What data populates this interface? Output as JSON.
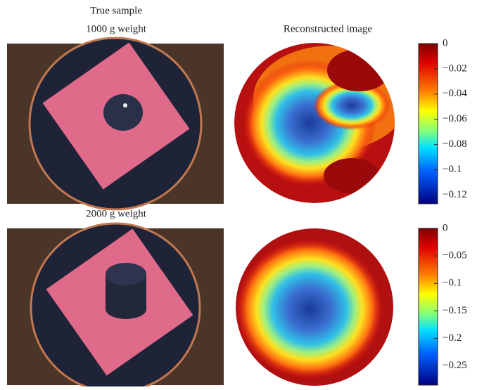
{
  "column_titles": {
    "left": "True sample",
    "right": "Reconstructed image"
  },
  "rows": [
    {
      "label": "1000 g weight",
      "colorbar": {
        "ylim": [
          -0.127,
          0
        ],
        "yticks": [
          0,
          {
            "value": -0.02,
            "label": "−0.02"
          },
          {
            "value": -0.04,
            "label": "−0.04"
          },
          {
            "value": -0.06,
            "label": "−0.06"
          },
          {
            "value": -0.08,
            "label": "−0.08"
          },
          {
            "value": -0.1,
            "label": "−0.1"
          },
          {
            "value": -0.12,
            "label": "−0.12"
          }
        ]
      }
    },
    {
      "label": "2000 g weight",
      "colorbar": {
        "ylim": [
          -0.285,
          0
        ],
        "yticks": [
          0,
          {
            "value": -0.05,
            "label": "−0.05"
          },
          {
            "value": -0.1,
            "label": "−0.1"
          },
          {
            "value": -0.15,
            "label": "−0.15"
          },
          {
            "value": -0.2,
            "label": "−0.2"
          },
          {
            "value": -0.25,
            "label": "−0.25"
          }
        ]
      }
    }
  ]
}
